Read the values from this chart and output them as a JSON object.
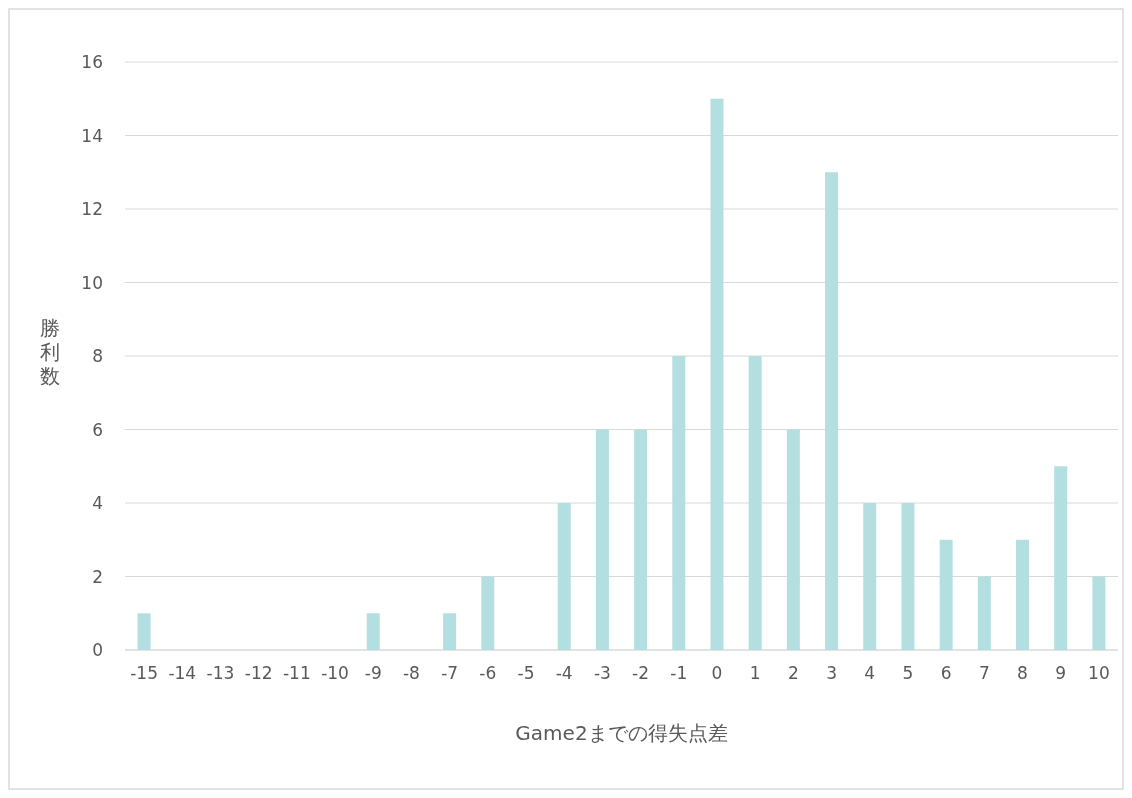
{
  "chart_data": {
    "type": "bar",
    "xlabel": "Game2までの得失点差",
    "ylabel": "勝利数",
    "categories": [
      "-15",
      "-14",
      "-13",
      "-12",
      "-11",
      "-10",
      "-9",
      "-8",
      "-7",
      "-6",
      "-5",
      "-4",
      "-3",
      "-2",
      "-1",
      "0",
      "1",
      "2",
      "3",
      "4",
      "5",
      "6",
      "7",
      "8",
      "9",
      "10"
    ],
    "values": [
      1,
      0,
      0,
      0,
      0,
      0,
      1,
      0,
      1,
      2,
      0,
      4,
      6,
      6,
      8,
      15,
      8,
      6,
      13,
      4,
      4,
      3,
      2,
      3,
      5,
      2
    ],
    "color": "#b4dfe0",
    "ylim": [
      0,
      16
    ],
    "yticks": [
      0,
      2,
      4,
      6,
      8,
      10,
      12,
      14,
      16
    ],
    "grid": "y"
  }
}
